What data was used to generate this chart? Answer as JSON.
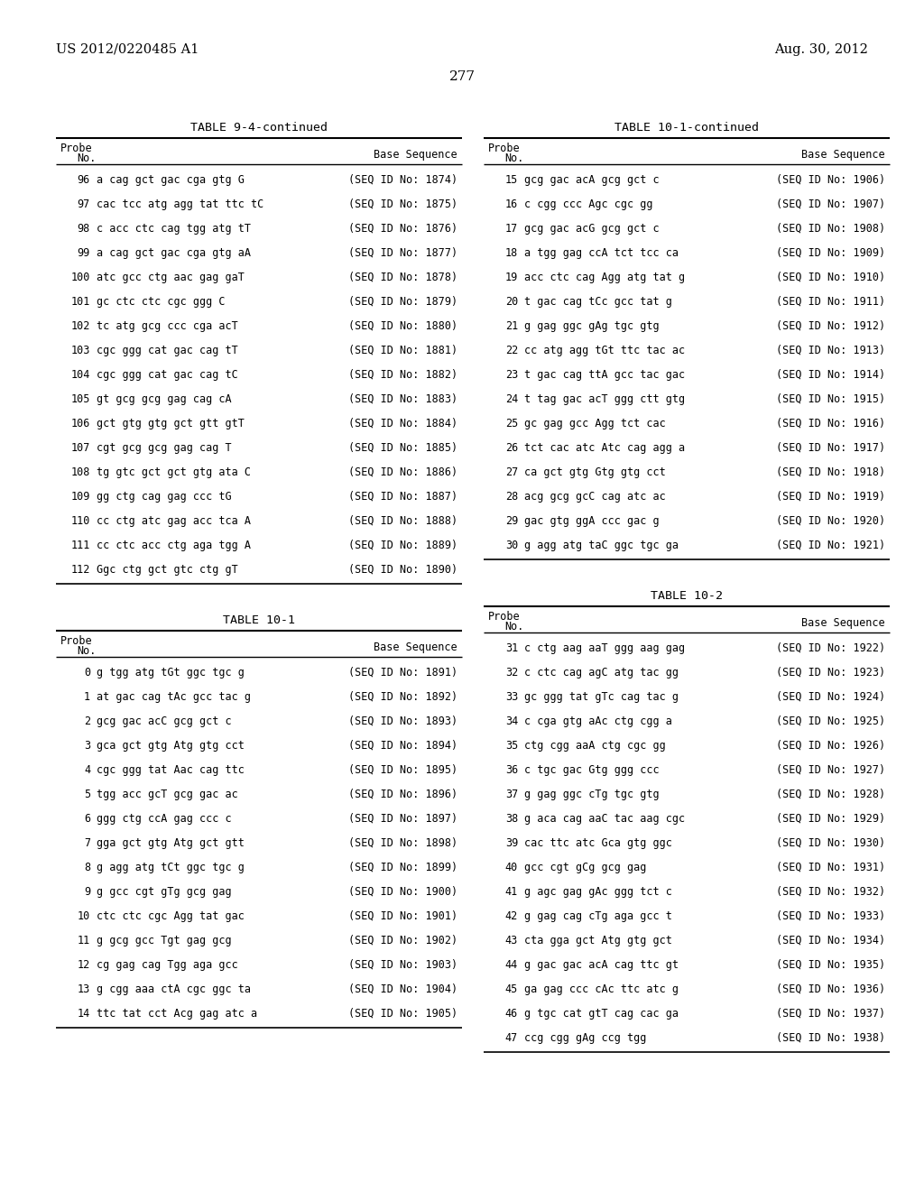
{
  "page_left": "US 2012/0220485 A1",
  "page_right": "Aug. 30, 2012",
  "page_number": "277",
  "background_color": "#ffffff",
  "table1_title": "TABLE 9-4-continued",
  "table1_rows": [
    [
      "96",
      "a cag gct gac cga gtg G",
      "(SEQ ID No: 1874)"
    ],
    [
      "97",
      "cac tcc atg agg tat ttc tC",
      "(SEQ ID No: 1875)"
    ],
    [
      "98",
      "c acc ctc cag tgg atg tT",
      "(SEQ ID No: 1876)"
    ],
    [
      "99",
      "a cag gct gac cga gtg aA",
      "(SEQ ID No: 1877)"
    ],
    [
      "100",
      "atc gcc ctg aac gag gaT",
      "(SEQ ID No: 1878)"
    ],
    [
      "101",
      "gc ctc ctc cgc ggg C",
      "(SEQ ID No: 1879)"
    ],
    [
      "102",
      "tc atg gcg ccc cga acT",
      "(SEQ ID No: 1880)"
    ],
    [
      "103",
      "cgc ggg cat gac cag tT",
      "(SEQ ID No: 1881)"
    ],
    [
      "104",
      "cgc ggg cat gac cag tC",
      "(SEQ ID No: 1882)"
    ],
    [
      "105",
      "gt gcg gcg gag cag cA",
      "(SEQ ID No: 1883)"
    ],
    [
      "106",
      "gct gtg gtg gct gtt gtT",
      "(SEQ ID No: 1884)"
    ],
    [
      "107",
      "cgt gcg gcg gag cag T",
      "(SEQ ID No: 1885)"
    ],
    [
      "108",
      "tg gtc gct gct gtg ata C",
      "(SEQ ID No: 1886)"
    ],
    [
      "109",
      "gg ctg cag gag ccc tG",
      "(SEQ ID No: 1887)"
    ],
    [
      "110",
      "cc ctg atc gag acc tca A",
      "(SEQ ID No: 1888)"
    ],
    [
      "111",
      "cc ctc acc ctg aga tgg A",
      "(SEQ ID No: 1889)"
    ],
    [
      "112",
      "Ggc ctg gct gtc ctg gT",
      "(SEQ ID No: 1890)"
    ]
  ],
  "table2_title": "TABLE 10-1",
  "table2_rows": [
    [
      "0",
      "g tgg atg tGt ggc tgc g",
      "(SEQ ID No: 1891)"
    ],
    [
      "1",
      "at gac cag tAc gcc tac g",
      "(SEQ ID No: 1892)"
    ],
    [
      "2",
      "gcg gac acC gcg gct c",
      "(SEQ ID No: 1893)"
    ],
    [
      "3",
      "gca gct gtg Atg gtg cct",
      "(SEQ ID No: 1894)"
    ],
    [
      "4",
      "cgc ggg tat Aac cag ttc",
      "(SEQ ID No: 1895)"
    ],
    [
      "5",
      "tgg acc gcT gcg gac ac",
      "(SEQ ID No: 1896)"
    ],
    [
      "6",
      "ggg ctg ccA gag ccc c",
      "(SEQ ID No: 1897)"
    ],
    [
      "7",
      "gga gct gtg Atg gct gtt",
      "(SEQ ID No: 1898)"
    ],
    [
      "8",
      "g agg atg tCt ggc tgc g",
      "(SEQ ID No: 1899)"
    ],
    [
      "9",
      "g gcc cgt gTg gcg gag",
      "(SEQ ID No: 1900)"
    ],
    [
      "10",
      "ctc ctc cgc Agg tat gac",
      "(SEQ ID No: 1901)"
    ],
    [
      "11",
      "g gcg gcc Tgt gag gcg",
      "(SEQ ID No: 1902)"
    ],
    [
      "12",
      "cg gag cag Tgg aga gcc",
      "(SEQ ID No: 1903)"
    ],
    [
      "13",
      "g cgg aaa ctA cgc ggc ta",
      "(SEQ ID No: 1904)"
    ],
    [
      "14",
      "ttc tat cct Acg gag atc a",
      "(SEQ ID No: 1905)"
    ]
  ],
  "table3_title": "TABLE 10-1-continued",
  "table3_rows": [
    [
      "15",
      "gcg gac acA gcg gct c",
      "(SEQ ID No: 1906)"
    ],
    [
      "16",
      "c cgg ccc Agc cgc gg",
      "(SEQ ID No: 1907)"
    ],
    [
      "17",
      "gcg gac acG gcg gct c",
      "(SEQ ID No: 1908)"
    ],
    [
      "18",
      "a tgg gag ccA tct tcc ca",
      "(SEQ ID No: 1909)"
    ],
    [
      "19",
      "acc ctc cag Agg atg tat g",
      "(SEQ ID No: 1910)"
    ],
    [
      "20",
      "t gac cag tCc gcc tat g",
      "(SEQ ID No: 1911)"
    ],
    [
      "21",
      "g gag ggc gAg tgc gtg",
      "(SEQ ID No: 1912)"
    ],
    [
      "22",
      "cc atg agg tGt ttc tac ac",
      "(SEQ ID No: 1913)"
    ],
    [
      "23",
      "t gac cag ttA gcc tac gac",
      "(SEQ ID No: 1914)"
    ],
    [
      "24",
      "t tag gac acT ggg ctt gtg",
      "(SEQ ID No: 1915)"
    ],
    [
      "25",
      "gc gag gcc Agg tct cac",
      "(SEQ ID No: 1916)"
    ],
    [
      "26",
      "tct cac atc Atc cag agg a",
      "(SEQ ID No: 1917)"
    ],
    [
      "27",
      "ca gct gtg Gtg gtg cct",
      "(SEQ ID No: 1918)"
    ],
    [
      "28",
      "acg gcg gcC cag atc ac",
      "(SEQ ID No: 1919)"
    ],
    [
      "29",
      "gac gtg ggA ccc gac g",
      "(SEQ ID No: 1920)"
    ],
    [
      "30",
      "g agg atg taC ggc tgc ga",
      "(SEQ ID No: 1921)"
    ]
  ],
  "table4_title": "TABLE 10-2",
  "table4_rows": [
    [
      "31",
      "c ctg aag aaT ggg aag gag",
      "(SEQ ID No: 1922)"
    ],
    [
      "32",
      "c ctc cag agC atg tac gg",
      "(SEQ ID No: 1923)"
    ],
    [
      "33",
      "gc ggg tat gTc cag tac g",
      "(SEQ ID No: 1924)"
    ],
    [
      "34",
      "c cga gtg aAc ctg cgg a",
      "(SEQ ID No: 1925)"
    ],
    [
      "35",
      "ctg cgg aaA ctg cgc gg",
      "(SEQ ID No: 1926)"
    ],
    [
      "36",
      "c tgc gac Gtg ggg ccc",
      "(SEQ ID No: 1927)"
    ],
    [
      "37",
      "g gag ggc cTg tgc gtg",
      "(SEQ ID No: 1928)"
    ],
    [
      "38",
      "g aca cag aaC tac aag cgc",
      "(SEQ ID No: 1929)"
    ],
    [
      "39",
      "cac ttc atc Gca gtg ggc",
      "(SEQ ID No: 1930)"
    ],
    [
      "40",
      "gcc cgt gCg gcg gag",
      "(SEQ ID No: 1931)"
    ],
    [
      "41",
      "g agc gag gAc ggg tct c",
      "(SEQ ID No: 1932)"
    ],
    [
      "42",
      "g gag cag cTg aga gcc t",
      "(SEQ ID No: 1933)"
    ],
    [
      "43",
      "cta gga gct Atg gtg gct",
      "(SEQ ID No: 1934)"
    ],
    [
      "44",
      "g gac gac acA cag ttc gt",
      "(SEQ ID No: 1935)"
    ],
    [
      "45",
      "ga gag ccc cAc ttc atc g",
      "(SEQ ID No: 1936)"
    ],
    [
      "46",
      "g tgc cat gtT cag cac ga",
      "(SEQ ID No: 1937)"
    ],
    [
      "47",
      "ccg cgg gAg ccg tgg",
      "(SEQ ID No: 1938)"
    ]
  ]
}
